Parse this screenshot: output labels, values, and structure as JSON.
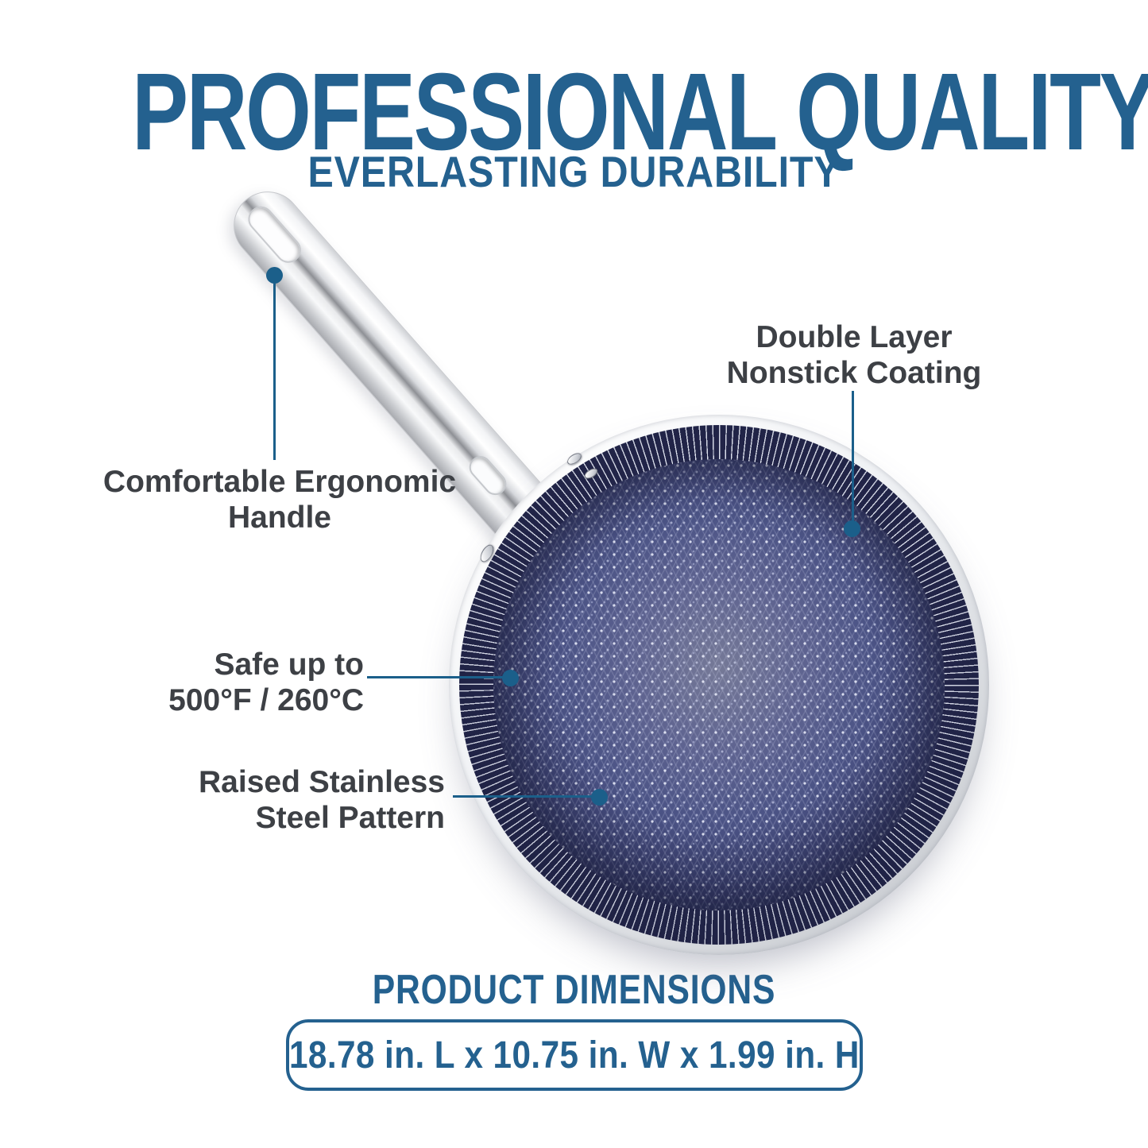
{
  "header": {
    "title": "PROFESSIONAL QUALITY",
    "subtitle": "EVERLASTING DURABILITY"
  },
  "callouts": {
    "coating": {
      "line1": "Double Layer",
      "line2": "Nonstick Coating"
    },
    "handle": {
      "line1": "Comfortable Ergonomic",
      "line2": "Handle"
    },
    "temperature": {
      "line1": "Safe up to",
      "line2": "500°F / 260°C"
    },
    "pattern": {
      "line1": "Raised Stainless",
      "line2": "Steel Pattern"
    }
  },
  "footer": {
    "heading": "PRODUCT DIMENSIONS",
    "dimensions": "18.78 in. L x 10.75 in. W x 1.99 in. H"
  },
  "colors": {
    "accent_blue": "#24618f",
    "line_blue": "#1b5f8a",
    "callout_text": "#3d4045",
    "pan_base_navy": "#4c5486",
    "pan_dark_navy": "#23264a",
    "steel_light": "#f2f3f4"
  }
}
